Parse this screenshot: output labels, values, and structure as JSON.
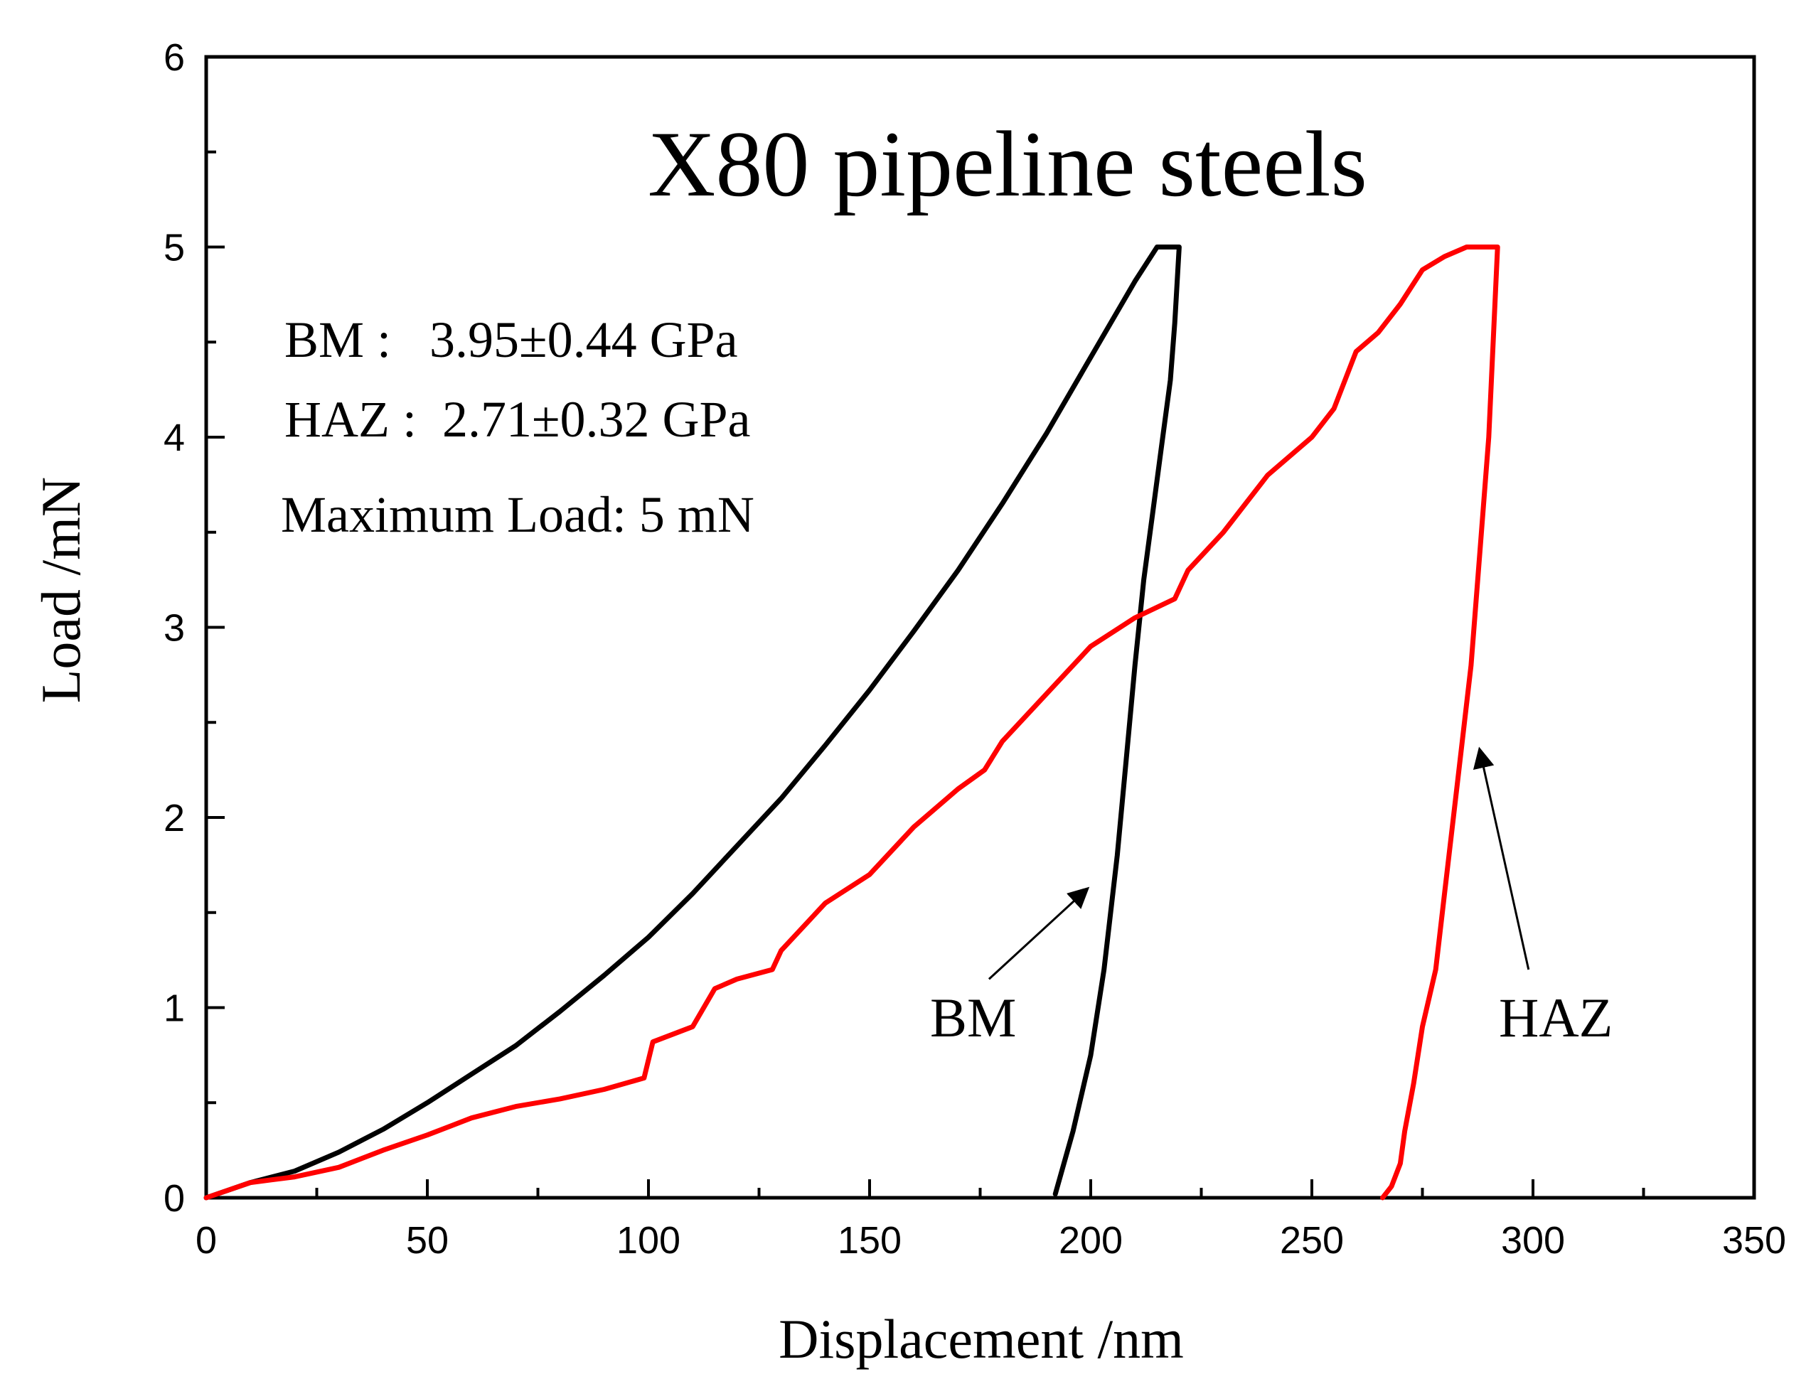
{
  "chart_data": {
    "type": "line",
    "title": "X80 pipeline steels",
    "xlabel": "Displacement /nm",
    "ylabel": "Load /mN",
    "xlim": [
      0,
      350
    ],
    "ylim": [
      0,
      6
    ],
    "xticks": [
      0,
      50,
      100,
      150,
      200,
      250,
      300,
      350
    ],
    "yticks": [
      0,
      1,
      2,
      3,
      4,
      5,
      6
    ],
    "grid": false,
    "annotations": [
      "BM :   3.95±0.44 GPa",
      "HAZ :  2.71±0.32 GPa",
      "Maximum Load: 5 mN"
    ],
    "series": [
      {
        "name": "BM",
        "color": "#000000",
        "x": [
          0,
          10,
          20,
          30,
          40,
          50,
          60,
          70,
          80,
          90,
          100,
          110,
          120,
          130,
          140,
          150,
          160,
          170,
          180,
          190,
          200,
          210,
          215,
          218,
          220,
          219,
          218,
          216,
          214,
          212,
          210,
          208,
          206,
          203,
          200,
          196,
          192
        ],
        "y": [
          0,
          0.08,
          0.14,
          0.24,
          0.36,
          0.5,
          0.65,
          0.8,
          0.98,
          1.17,
          1.37,
          1.6,
          1.85,
          2.1,
          2.38,
          2.67,
          2.98,
          3.3,
          3.65,
          4.02,
          4.42,
          4.82,
          5.0,
          5.0,
          5.0,
          4.6,
          4.3,
          3.95,
          3.6,
          3.25,
          2.8,
          2.3,
          1.8,
          1.2,
          0.75,
          0.35,
          0.02
        ]
      },
      {
        "name": "HAZ",
        "color": "#ff0000",
        "x": [
          0,
          10,
          20,
          30,
          40,
          50,
          60,
          70,
          80,
          90,
          99,
          101,
          110,
          115,
          120,
          128,
          130,
          140,
          150,
          160,
          170,
          176,
          180,
          190,
          200,
          210,
          219,
          222,
          230,
          240,
          250,
          255,
          260,
          265,
          270,
          275,
          280,
          285,
          290,
          292,
          291,
          290,
          288,
          286,
          283,
          280,
          278,
          275,
          273,
          271,
          270,
          268,
          266
        ],
        "y": [
          0,
          0.08,
          0.11,
          0.16,
          0.25,
          0.33,
          0.42,
          0.48,
          0.52,
          0.57,
          0.63,
          0.82,
          0.9,
          1.1,
          1.15,
          1.2,
          1.3,
          1.55,
          1.7,
          1.95,
          2.15,
          2.25,
          2.4,
          2.65,
          2.9,
          3.05,
          3.15,
          3.3,
          3.5,
          3.8,
          4.0,
          4.15,
          4.45,
          4.55,
          4.7,
          4.88,
          4.95,
          5.0,
          5.0,
          5.0,
          4.5,
          4.0,
          3.4,
          2.8,
          2.2,
          1.6,
          1.2,
          0.9,
          0.6,
          0.35,
          0.18,
          0.06,
          0.0
        ]
      }
    ],
    "arrows": [
      {
        "label": "BM",
        "from": [
          177,
          1.15
        ],
        "to": [
          199,
          1.62
        ]
      },
      {
        "label": "HAZ",
        "from": [
          299,
          1.2
        ],
        "to": [
          288,
          2.35
        ]
      }
    ]
  }
}
